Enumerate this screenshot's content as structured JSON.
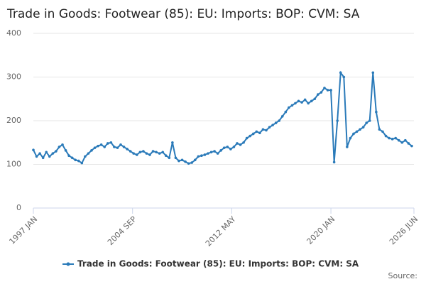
{
  "chart_data": {
    "type": "line",
    "title": "Trade in Goods: Footwear (85): EU: Imports: BOP: CVM: SA",
    "source": "Source:",
    "x": [
      1997,
      1997.25,
      1997.5,
      1997.75,
      1998,
      1998.25,
      1998.5,
      1998.75,
      1999,
      1999.25,
      1999.5,
      1999.75,
      2000,
      2000.25,
      2000.5,
      2000.75,
      2001,
      2001.25,
      2001.5,
      2001.75,
      2002,
      2002.25,
      2002.5,
      2002.75,
      2003,
      2003.25,
      2003.5,
      2003.75,
      2004,
      2004.25,
      2004.5,
      2004.75,
      2005,
      2005.25,
      2005.5,
      2005.75,
      2006,
      2006.25,
      2006.5,
      2006.75,
      2007,
      2007.25,
      2007.5,
      2007.75,
      2008,
      2008.25,
      2008.5,
      2008.75,
      2009,
      2009.25,
      2009.5,
      2009.75,
      2010,
      2010.25,
      2010.5,
      2010.75,
      2011,
      2011.25,
      2011.5,
      2011.75,
      2012,
      2012.25,
      2012.5,
      2012.75,
      2013,
      2013.25,
      2013.5,
      2013.75,
      2014,
      2014.25,
      2014.5,
      2014.75,
      2015,
      2015.25,
      2015.5,
      2015.75,
      2016,
      2016.25,
      2016.5,
      2016.75,
      2017,
      2017.25,
      2017.5,
      2017.75,
      2018,
      2018.25,
      2018.5,
      2018.75,
      2019,
      2019.25,
      2019.5,
      2019.75,
      2020,
      2020.25,
      2020.5,
      2020.75,
      2021,
      2021.25,
      2021.5,
      2021.75,
      2022,
      2022.25,
      2022.5,
      2022.75,
      2023,
      2023.25,
      2023.5,
      2023.75,
      2024,
      2024.25,
      2024.5,
      2024.75,
      2025,
      2025.25,
      2025.5,
      2025.75,
      2026,
      2026.25
    ],
    "series": [
      {
        "name": "Trade in Goods: Footwear (85): EU: Imports: BOP: CVM: SA",
        "color": "#2a7ab9",
        "values": [
          133,
          118,
          125,
          115,
          128,
          118,
          125,
          130,
          140,
          145,
          132,
          120,
          115,
          110,
          108,
          103,
          118,
          125,
          132,
          138,
          142,
          145,
          140,
          148,
          150,
          140,
          138,
          145,
          140,
          135,
          130,
          125,
          122,
          128,
          130,
          125,
          122,
          130,
          128,
          125,
          128,
          120,
          115,
          150,
          115,
          108,
          110,
          106,
          102,
          104,
          110,
          118,
          120,
          122,
          125,
          128,
          130,
          125,
          132,
          138,
          140,
          135,
          140,
          148,
          145,
          150,
          160,
          165,
          170,
          175,
          172,
          180,
          178,
          185,
          190,
          195,
          200,
          210,
          220,
          230,
          235,
          240,
          245,
          242,
          248,
          240,
          245,
          250,
          260,
          265,
          275,
          270,
          270,
          105,
          200,
          310,
          300,
          140,
          160,
          170,
          175,
          180,
          185,
          195,
          200,
          310,
          220,
          180,
          175,
          165,
          160,
          158,
          160,
          155,
          150,
          155,
          148,
          142
        ]
      }
    ],
    "xlim": [
      1997,
      2026.417
    ],
    "xticks": [
      {
        "value": 1997,
        "label": "1997 JAN"
      },
      {
        "value": 2004.667,
        "label": "2004 SEP"
      },
      {
        "value": 2012.333,
        "label": "2012 MAY"
      },
      {
        "value": 2020,
        "label": "2020 JAN"
      },
      {
        "value": 2026.417,
        "label": "2026 JUN"
      }
    ],
    "ylim": [
      0,
      400
    ],
    "yticks": [
      0,
      100,
      200,
      300,
      400
    ],
    "grid": true
  }
}
